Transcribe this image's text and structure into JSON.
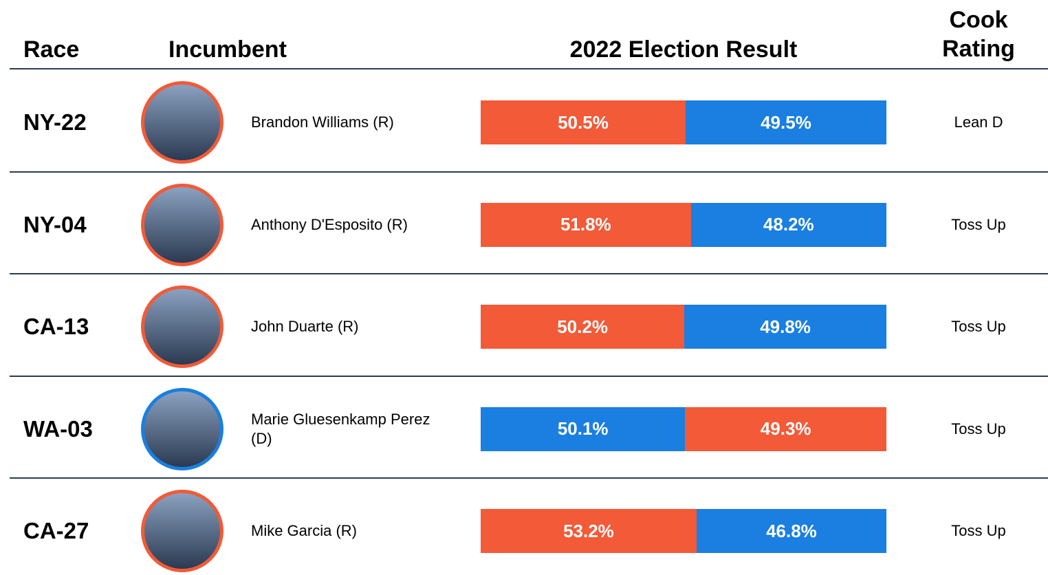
{
  "header": {
    "race": "Race",
    "incumbent": "Incumbent",
    "result": "2022 Election Result",
    "rating": "Cook Rating"
  },
  "rows": [
    {
      "race": "NY-22",
      "incumbent": "Brandon Williams (R)",
      "ring_color": "#f25a38",
      "rating": "Lean D",
      "results": [
        {
          "value": 50.5,
          "label": "50.5%",
          "color": "#f25a38"
        },
        {
          "value": 49.5,
          "label": "49.5%",
          "color": "#1a7fe0"
        }
      ]
    },
    {
      "race": "NY-04",
      "incumbent": "Anthony D'Esposito (R)",
      "ring_color": "#f25a38",
      "rating": "Toss Up",
      "results": [
        {
          "value": 51.8,
          "label": "51.8%",
          "color": "#f25a38"
        },
        {
          "value": 48.2,
          "label": "48.2%",
          "color": "#1a7fe0"
        }
      ]
    },
    {
      "race": "CA-13",
      "incumbent": "John Duarte (R)",
      "ring_color": "#f25a38",
      "rating": "Toss Up",
      "results": [
        {
          "value": 50.2,
          "label": "50.2%",
          "color": "#f25a38"
        },
        {
          "value": 49.8,
          "label": "49.8%",
          "color": "#1a7fe0"
        }
      ]
    },
    {
      "race": "WA-03",
      "incumbent": "Marie Gluesenkamp Perez (D)",
      "ring_color": "#1a7fe0",
      "rating": "Toss Up",
      "results": [
        {
          "value": 50.1,
          "label": "50.1%",
          "color": "#1a7fe0"
        },
        {
          "value": 49.3,
          "label": "49.3%",
          "color": "#f25a38"
        }
      ]
    },
    {
      "race": "CA-27",
      "incumbent": "Mike Garcia (R)",
      "ring_color": "#f25a38",
      "rating": "Toss Up",
      "results": [
        {
          "value": 53.2,
          "label": "53.2%",
          "color": "#f25a38"
        },
        {
          "value": 46.8,
          "label": "46.8%",
          "color": "#1a7fe0"
        }
      ]
    }
  ]
}
